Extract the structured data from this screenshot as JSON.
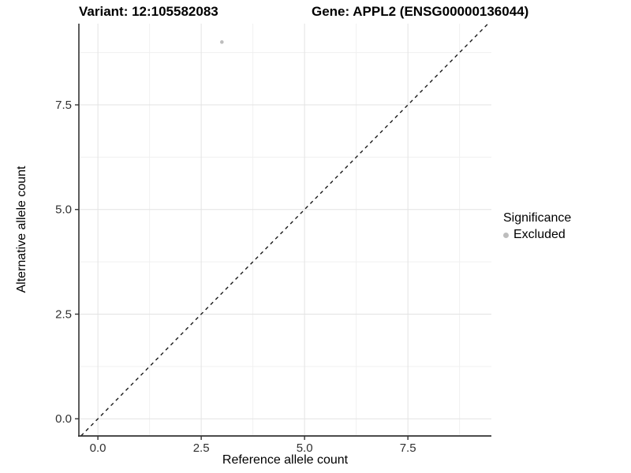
{
  "titles": {
    "variant": "Variant: 12:105582083",
    "gene": "Gene: APPL2 (ENSG00000136044)"
  },
  "chart_data": {
    "type": "scatter",
    "xlabel": "Reference allele count",
    "ylabel": "Alternative allele count",
    "x_ticks": [
      0.0,
      2.5,
      5.0,
      7.5
    ],
    "y_ticks": [
      0.0,
      2.5,
      5.0,
      7.5
    ],
    "x_tick_labels": [
      "0.0",
      "2.5",
      "5.0",
      "7.5"
    ],
    "y_tick_labels": [
      "0.0",
      "2.5",
      "5.0",
      "7.5"
    ],
    "xlim": [
      -0.46,
      9.52
    ],
    "ylim": [
      -0.41,
      9.44
    ],
    "grid": "major-and-minor",
    "series": [
      {
        "name": "Excluded",
        "points": [
          {
            "x": 3,
            "y": 9
          }
        ]
      }
    ],
    "reference_line": {
      "type": "identity",
      "slope": 1,
      "intercept": 0,
      "style": "dashed"
    },
    "legend": {
      "position": "right",
      "title": "Significance",
      "entries": [
        {
          "label": "Excluded",
          "color": "#bdbdbd"
        }
      ]
    },
    "colors": {
      "point": "#bdbdbd",
      "reference_line": "#1a1a1a",
      "axis_line": "#333333",
      "tick_mark": "#333333",
      "tick_label": "#303030",
      "grid_major": "#e3e3e3",
      "grid_minor": "#f0f0f0",
      "background": "#ffffff"
    }
  }
}
